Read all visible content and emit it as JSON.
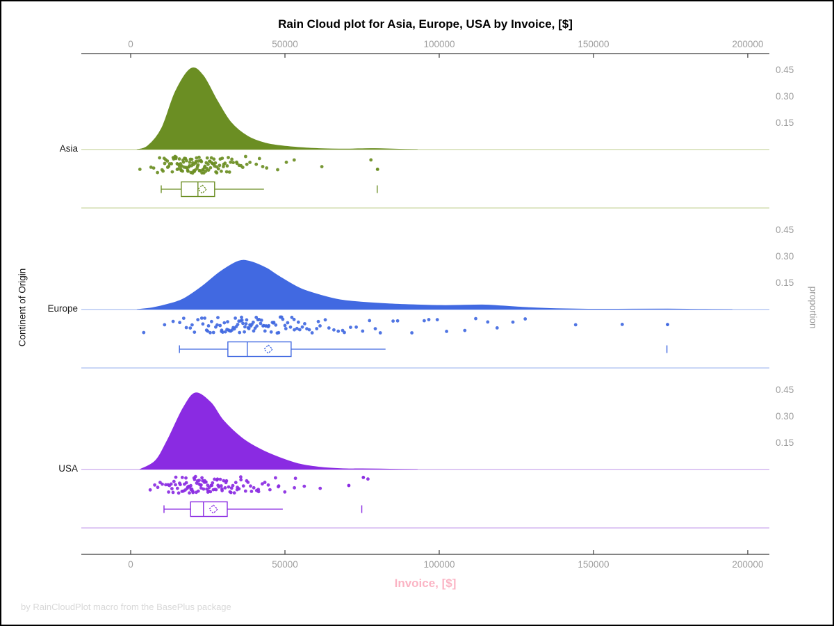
{
  "chart_data": {
    "type": "raincloud",
    "description": "half-violin density (cloud) + jittered strip points (rain) + box plot with mean diamond, one row per continent",
    "title": "Rain Cloud plot for Asia, Europe, USA by Invoice, [$]",
    "xlabel": "Invoice, [$]",
    "ylabel_left": "Continent of Origin",
    "ylabel_right": "proportion",
    "footnote": "by RainCloudPlot macro from the BasePlus package",
    "xlim": [
      -16000,
      207000
    ],
    "x_ticks": [
      0,
      50000,
      100000,
      150000,
      200000
    ],
    "x_tick_labels": [
      "0",
      "50000",
      "100000",
      "150000",
      "200000"
    ],
    "proportion_ticks": [
      0.45,
      0.3,
      0.15
    ],
    "proportion_tick_labels": [
      "0.45",
      "0.30",
      "0.15"
    ],
    "categories": [
      "Asia",
      "Europe",
      "USA"
    ],
    "colors": {
      "axis_line": "#3a3a3a",
      "tick_text": "#9e9e9e",
      "title_text": "#000000",
      "xlabel_pink": "#fbb4c4",
      "footnote_gray": "#d8d8d8"
    },
    "groups": [
      {
        "name": "Asia",
        "color": "#6B8E23",
        "light_color": "#c9d6a2",
        "density": [
          [
            2000,
            0
          ],
          [
            5500,
            0.02
          ],
          [
            10000,
            0.12
          ],
          [
            14500,
            0.33
          ],
          [
            19500,
            0.46
          ],
          [
            23500,
            0.42
          ],
          [
            28000,
            0.28
          ],
          [
            32500,
            0.155
          ],
          [
            38000,
            0.075
          ],
          [
            44000,
            0.035
          ],
          [
            50500,
            0.018
          ],
          [
            57000,
            0.009
          ],
          [
            64000,
            0.004
          ],
          [
            70000,
            0.003
          ],
          [
            76000,
            0.005
          ],
          [
            81000,
            0.005
          ],
          [
            87000,
            0.002
          ],
          [
            93000,
            0
          ]
        ],
        "box": {
          "whisker_low": 9900,
          "q1": 16400,
          "median": 21800,
          "mean": 23200,
          "q3": 27200,
          "whisker_high": 43200,
          "far_outliers": [
            79900
          ]
        },
        "rain": {
          "n": 125,
          "seed": 101,
          "outlier_points": [
            80000
          ]
        }
      },
      {
        "name": "Europe",
        "color": "#4169E1",
        "light_color": "#a9bdf0",
        "density": [
          [
            2000,
            0
          ],
          [
            7000,
            0.01
          ],
          [
            12000,
            0.03
          ],
          [
            17000,
            0.06
          ],
          [
            23000,
            0.13
          ],
          [
            29000,
            0.215
          ],
          [
            35000,
            0.275
          ],
          [
            39000,
            0.272
          ],
          [
            44000,
            0.235
          ],
          [
            48000,
            0.19
          ],
          [
            55000,
            0.12
          ],
          [
            62000,
            0.08
          ],
          [
            68000,
            0.055
          ],
          [
            75000,
            0.042
          ],
          [
            84000,
            0.032
          ],
          [
            93000,
            0.026
          ],
          [
            102000,
            0.023
          ],
          [
            114000,
            0.026
          ],
          [
            120000,
            0.021
          ],
          [
            129000,
            0.011
          ],
          [
            138000,
            0.005
          ],
          [
            152000,
            0.002
          ],
          [
            174000,
            0.003
          ],
          [
            184000,
            0.001
          ],
          [
            195000,
            0
          ]
        ],
        "box": {
          "whisker_low": 15800,
          "q1": 31500,
          "median": 37800,
          "mean": 44600,
          "q3": 52000,
          "whisker_high": 82600,
          "far_outliers": [
            173800
          ]
        },
        "rain": {
          "n": 125,
          "seed": 202,
          "outlier_points": [
            174000
          ]
        }
      },
      {
        "name": "USA",
        "color": "#8A2BE2",
        "light_color": "#caa6ee",
        "density": [
          [
            3000,
            0
          ],
          [
            8000,
            0.05
          ],
          [
            12000,
            0.17
          ],
          [
            17000,
            0.35
          ],
          [
            21000,
            0.435
          ],
          [
            26000,
            0.38
          ],
          [
            30000,
            0.28
          ],
          [
            36000,
            0.18
          ],
          [
            41500,
            0.12
          ],
          [
            48000,
            0.07
          ],
          [
            55000,
            0.03
          ],
          [
            62000,
            0.012
          ],
          [
            70000,
            0.004
          ],
          [
            75000,
            0.004
          ],
          [
            84000,
            0.002
          ],
          [
            93000,
            0
          ]
        ],
        "box": {
          "whisker_low": 10800,
          "q1": 19400,
          "median": 23600,
          "mean": 26800,
          "q3": 31300,
          "whisker_high": 49300,
          "far_outliers": [
            74900
          ]
        },
        "rain": {
          "n": 115,
          "seed": 303,
          "outlier_points": [
            70700,
            75400
          ]
        }
      }
    ]
  }
}
